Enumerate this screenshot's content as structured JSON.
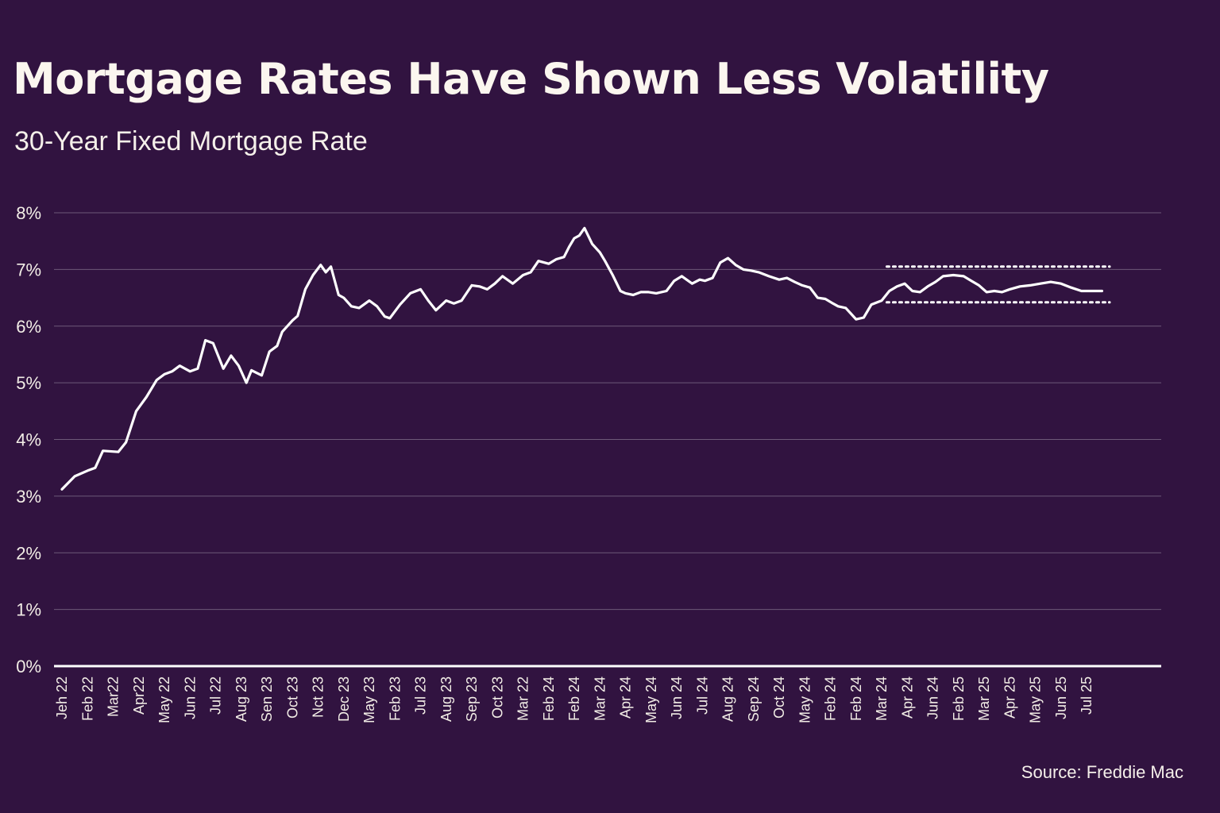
{
  "header": {
    "title": "Mortgage Rates Have Shown Less Volatility",
    "subtitle": "30-Year Fixed Mortgage Rate"
  },
  "footer": {
    "source": "Source: Freddie Mac"
  },
  "colors": {
    "background": "#311340",
    "line": "#ffffff",
    "grid": "#6d5a78",
    "baseline": "#ffffff",
    "text": "#f5f0ea"
  },
  "chart_data": {
    "type": "line",
    "title": "Mortgage Rates Have Shown Less Volatility",
    "subtitle": "30-Year Fixed Mortgage Rate",
    "xlabel": "",
    "ylabel": "",
    "ylim": [
      0,
      8
    ],
    "y_ticks": [
      {
        "value": 0,
        "label": "0%"
      },
      {
        "value": 1,
        "label": "1%"
      },
      {
        "value": 2,
        "label": "2%"
      },
      {
        "value": 3,
        "label": "3%"
      },
      {
        "value": 4,
        "label": "4%"
      },
      {
        "value": 5,
        "label": "5%"
      },
      {
        "value": 6,
        "label": "6%"
      },
      {
        "value": 7,
        "label": "7%"
      },
      {
        "value": 8,
        "label": "8%"
      }
    ],
    "grid": true,
    "x_categories": [
      "Jeh 22",
      "Feb 22",
      "Mar22",
      "Apr22",
      "May 22",
      "Jun 22",
      "Jul 22",
      "Aug 23",
      "Sen 23",
      "Oct 23",
      "Nct 23",
      "Dec 23",
      "May 23",
      "Feb 23",
      "Jul 23",
      "Aug 23",
      "Sep 23",
      "Oct 23",
      "Mar 22",
      "Feb 24",
      "Feb 24",
      "Mar 24",
      "Apr 24",
      "May 24",
      "Jun 24",
      "Jul 24",
      "Aug 24",
      "Sep 24",
      "Oct 24",
      "May 24",
      "Feb 24",
      "Feb 24",
      "Mar 24",
      "Apr 24",
      "Jun 24",
      "Feb 25",
      "Mar 25",
      "Apr 25",
      "May 25",
      "Jun 25",
      "Jul 25"
    ],
    "series": [
      {
        "name": "30-Year Fixed Mortgage Rate",
        "x": [
          0,
          0.5,
          1,
          1.3,
          1.6,
          2.2,
          2.5,
          2.9,
          3.3,
          3.7,
          4.0,
          4.3,
          4.6,
          5.0,
          5.3,
          5.6,
          5.9,
          6.3,
          6.6,
          6.9,
          7.2,
          7.4,
          7.8,
          8.1,
          8.4,
          8.6,
          9.0,
          9.2,
          9.5,
          9.8,
          10.1,
          10.3,
          10.5,
          10.8,
          11.0,
          11.3,
          11.6,
          12.0,
          12.3,
          12.6,
          12.8,
          13.2,
          13.6,
          14.0,
          14.3,
          14.6,
          15.0,
          15.3,
          15.6,
          16.0,
          16.3,
          16.6,
          16.9,
          17.2,
          17.6,
          18.0,
          18.3,
          18.6,
          19.0,
          19.3,
          19.6,
          19.8,
          20.0,
          20.2,
          20.4,
          20.7,
          21.0,
          21.2,
          21.5,
          21.8,
          22.0,
          22.3,
          22.6,
          22.9,
          23.2,
          23.6,
          23.9,
          24.2,
          24.6,
          24.9,
          25.1,
          25.4,
          25.7,
          26.0,
          26.3,
          26.6,
          26.9,
          27.2,
          27.6,
          28.0,
          28.3,
          28.6,
          28.9,
          29.2,
          29.5,
          29.8,
          30.1,
          30.3,
          30.6,
          30.8,
          31.0,
          31.3,
          31.6,
          32.0,
          32.3,
          32.6,
          32.9,
          33.2,
          33.5,
          33.8,
          34.1,
          34.4,
          34.8,
          35.2,
          35.5,
          35.8,
          36.1,
          36.4,
          36.7,
          37.0,
          37.4,
          37.8,
          38.2,
          38.6,
          39.0,
          39.4,
          39.8,
          40.2,
          40.6
        ],
        "values": [
          3.12,
          3.35,
          3.45,
          3.5,
          3.8,
          3.78,
          3.95,
          4.5,
          4.75,
          5.05,
          5.15,
          5.2,
          5.3,
          5.2,
          5.25,
          5.75,
          5.7,
          5.25,
          5.48,
          5.3,
          5.0,
          5.22,
          5.13,
          5.55,
          5.65,
          5.9,
          6.1,
          6.18,
          6.65,
          6.9,
          7.08,
          6.95,
          7.05,
          6.55,
          6.5,
          6.35,
          6.32,
          6.45,
          6.35,
          6.17,
          6.14,
          6.38,
          6.58,
          6.65,
          6.45,
          6.28,
          6.45,
          6.4,
          6.45,
          6.72,
          6.7,
          6.65,
          6.75,
          6.88,
          6.75,
          6.9,
          6.95,
          7.15,
          7.1,
          7.18,
          7.22,
          7.4,
          7.55,
          7.6,
          7.73,
          7.45,
          7.3,
          7.15,
          6.9,
          6.62,
          6.58,
          6.55,
          6.6,
          6.6,
          6.58,
          6.62,
          6.8,
          6.88,
          6.75,
          6.82,
          6.8,
          6.85,
          7.12,
          7.2,
          7.08,
          7.0,
          6.98,
          6.95,
          6.88,
          6.82,
          6.85,
          6.78,
          6.72,
          6.68,
          6.5,
          6.48,
          6.4,
          6.35,
          6.32,
          6.22,
          6.12,
          6.15,
          6.38,
          6.45,
          6.62,
          6.7,
          6.75,
          6.62,
          6.6,
          6.7,
          6.78,
          6.88,
          6.9,
          6.88,
          6.8,
          6.72,
          6.6,
          6.62,
          6.6,
          6.65,
          6.7,
          6.72,
          6.75,
          6.78,
          6.75,
          6.68,
          6.62,
          6.62,
          6.62
        ]
      }
    ],
    "reference_lines": [
      {
        "style": "dotted",
        "value": 7.05,
        "x_start": 32.2,
        "x_end": 40.9
      },
      {
        "style": "dotted",
        "value": 6.42,
        "x_start": 32.2,
        "x_end": 40.9
      }
    ]
  }
}
